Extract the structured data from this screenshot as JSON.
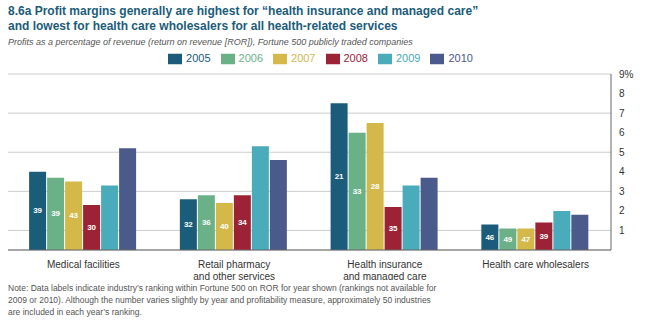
{
  "chart_data": {
    "type": "bar",
    "title": "8.6a Profit margins generally are highest for “health insurance and managed care”\nand lowest for health care wholesalers for all health-related services",
    "subtitle": "Profits as a percentage of revenue (return on revenue [ROR]), Fortune 500 publicly traded companies",
    "note": "Note: Data labels indicate industry’s ranking within Fortune 500 on ROR for year shown (rankings not available for\n2009 or 2010). Although the number varies slightly by year and profitability measure, approximately 50 industries\nare included in each year’s ranking.",
    "categories": [
      "Medical facilities",
      "Retail pharmacy\nand other services",
      "Health insurance\nand managed care",
      "Health care wholesalers"
    ],
    "series": [
      {
        "name": "2005",
        "color": "#1b5c7a",
        "values": [
          4.0,
          2.6,
          7.5,
          1.3
        ],
        "ranks": [
          39,
          32,
          21,
          46
        ]
      },
      {
        "name": "2006",
        "color": "#6ab187",
        "values": [
          3.7,
          2.8,
          6.0,
          1.1
        ],
        "ranks": [
          39,
          36,
          33,
          49
        ]
      },
      {
        "name": "2007",
        "color": "#d4b84a",
        "values": [
          3.5,
          2.4,
          6.5,
          1.1
        ],
        "ranks": [
          43,
          40,
          28,
          47
        ]
      },
      {
        "name": "2008",
        "color": "#9b2335",
        "values": [
          2.3,
          2.8,
          2.2,
          1.4
        ],
        "ranks": [
          30,
          34,
          35,
          39
        ]
      },
      {
        "name": "2009",
        "color": "#4aabba",
        "values": [
          3.3,
          5.3,
          3.3,
          2.0
        ]
      },
      {
        "name": "2010",
        "color": "#4a5a8a",
        "values": [
          5.2,
          4.6,
          3.7,
          1.8
        ]
      }
    ],
    "ylim": [
      0,
      9
    ],
    "yticks": [
      1,
      2,
      3,
      4,
      5,
      6,
      7,
      8,
      {
        "value": 9,
        "label": "9%"
      }
    ],
    "grid": true,
    "legend": "top"
  }
}
